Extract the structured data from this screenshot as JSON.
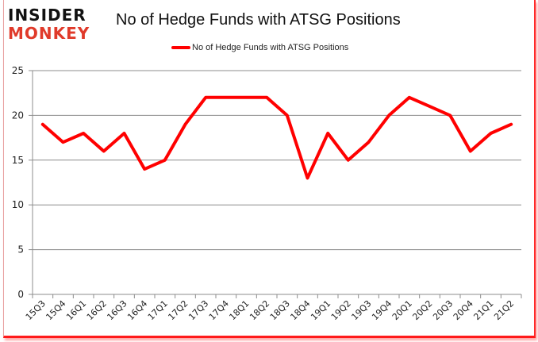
{
  "logo": {
    "line1": "INSIDER",
    "line2": "MONKEY"
  },
  "title": "No of Hedge Funds with ATSG Positions",
  "legend": {
    "label": "No of Hedge Funds with ATSG Positions",
    "color": "#ff0000"
  },
  "chart_data": {
    "type": "line",
    "title": "No of Hedge Funds with ATSG Positions",
    "xlabel": "",
    "ylabel": "",
    "categories": [
      "15Q3",
      "15Q4",
      "16Q1",
      "16Q2",
      "16Q3",
      "16Q4",
      "17Q1",
      "17Q2",
      "17Q3",
      "17Q4",
      "18Q1",
      "18Q2",
      "18Q3",
      "18Q4",
      "19Q1",
      "19Q2",
      "19Q3",
      "19Q4",
      "20Q1",
      "20Q2",
      "20Q3",
      "20Q4",
      "21Q1",
      "21Q2"
    ],
    "series": [
      {
        "name": "No of Hedge Funds with ATSG Positions",
        "color": "#ff0000",
        "values": [
          19,
          17,
          18,
          16,
          18,
          14,
          15,
          19,
          22,
          22,
          22,
          22,
          20,
          13,
          18,
          15,
          17,
          20,
          22,
          21,
          20,
          16,
          18,
          19
        ]
      }
    ],
    "ylim": [
      0,
      25
    ],
    "yticks": [
      0,
      5,
      10,
      15,
      20,
      25
    ],
    "grid": true,
    "legend_position": "top"
  }
}
